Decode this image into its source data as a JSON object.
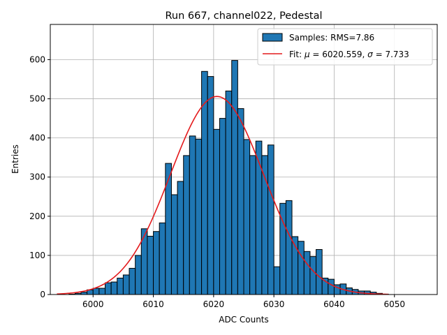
{
  "chart_data": {
    "type": "bar",
    "title": "Run 667, channel022, Pedestal",
    "xlabel": "ADC Counts",
    "ylabel": "Entries",
    "xlim": [
      5992.9,
      6057.1
    ],
    "ylim": [
      0,
      690
    ],
    "xticks": [
      6000,
      6010,
      6020,
      6030,
      6040,
      6050
    ],
    "yticks": [
      0,
      100,
      200,
      300,
      400,
      500,
      600
    ],
    "grid": true,
    "legend_position": "top-right",
    "bar_color": "#1f77b4",
    "fit_color": "#e41a1c",
    "series": [
      {
        "name": "Samples: RMS=7.86",
        "bin_start": 5996,
        "bin_width": 1,
        "values": [
          1,
          3,
          6,
          12,
          16,
          16,
          30,
          32,
          42,
          50,
          67,
          100,
          168,
          149,
          161,
          183,
          335,
          255,
          289,
          355,
          405,
          397,
          570,
          557,
          422,
          450,
          520,
          598,
          475,
          396,
          355,
          392,
          355,
          382,
          71,
          233,
          240,
          148,
          136,
          110,
          97,
          115,
          42,
          39,
          25,
          27,
          17,
          13,
          9,
          9,
          6,
          3,
          1
        ]
      }
    ],
    "fit": {
      "name_prefix": "Fit: ",
      "name_mu": "μ",
      "mu_text": " = 6020.559, ",
      "name_sigma": "σ",
      "sigma_text": " = 7.733",
      "mu": 6020.559,
      "sigma": 7.733,
      "amplitude": 506,
      "x_range": [
        5994,
        6049
      ]
    }
  }
}
